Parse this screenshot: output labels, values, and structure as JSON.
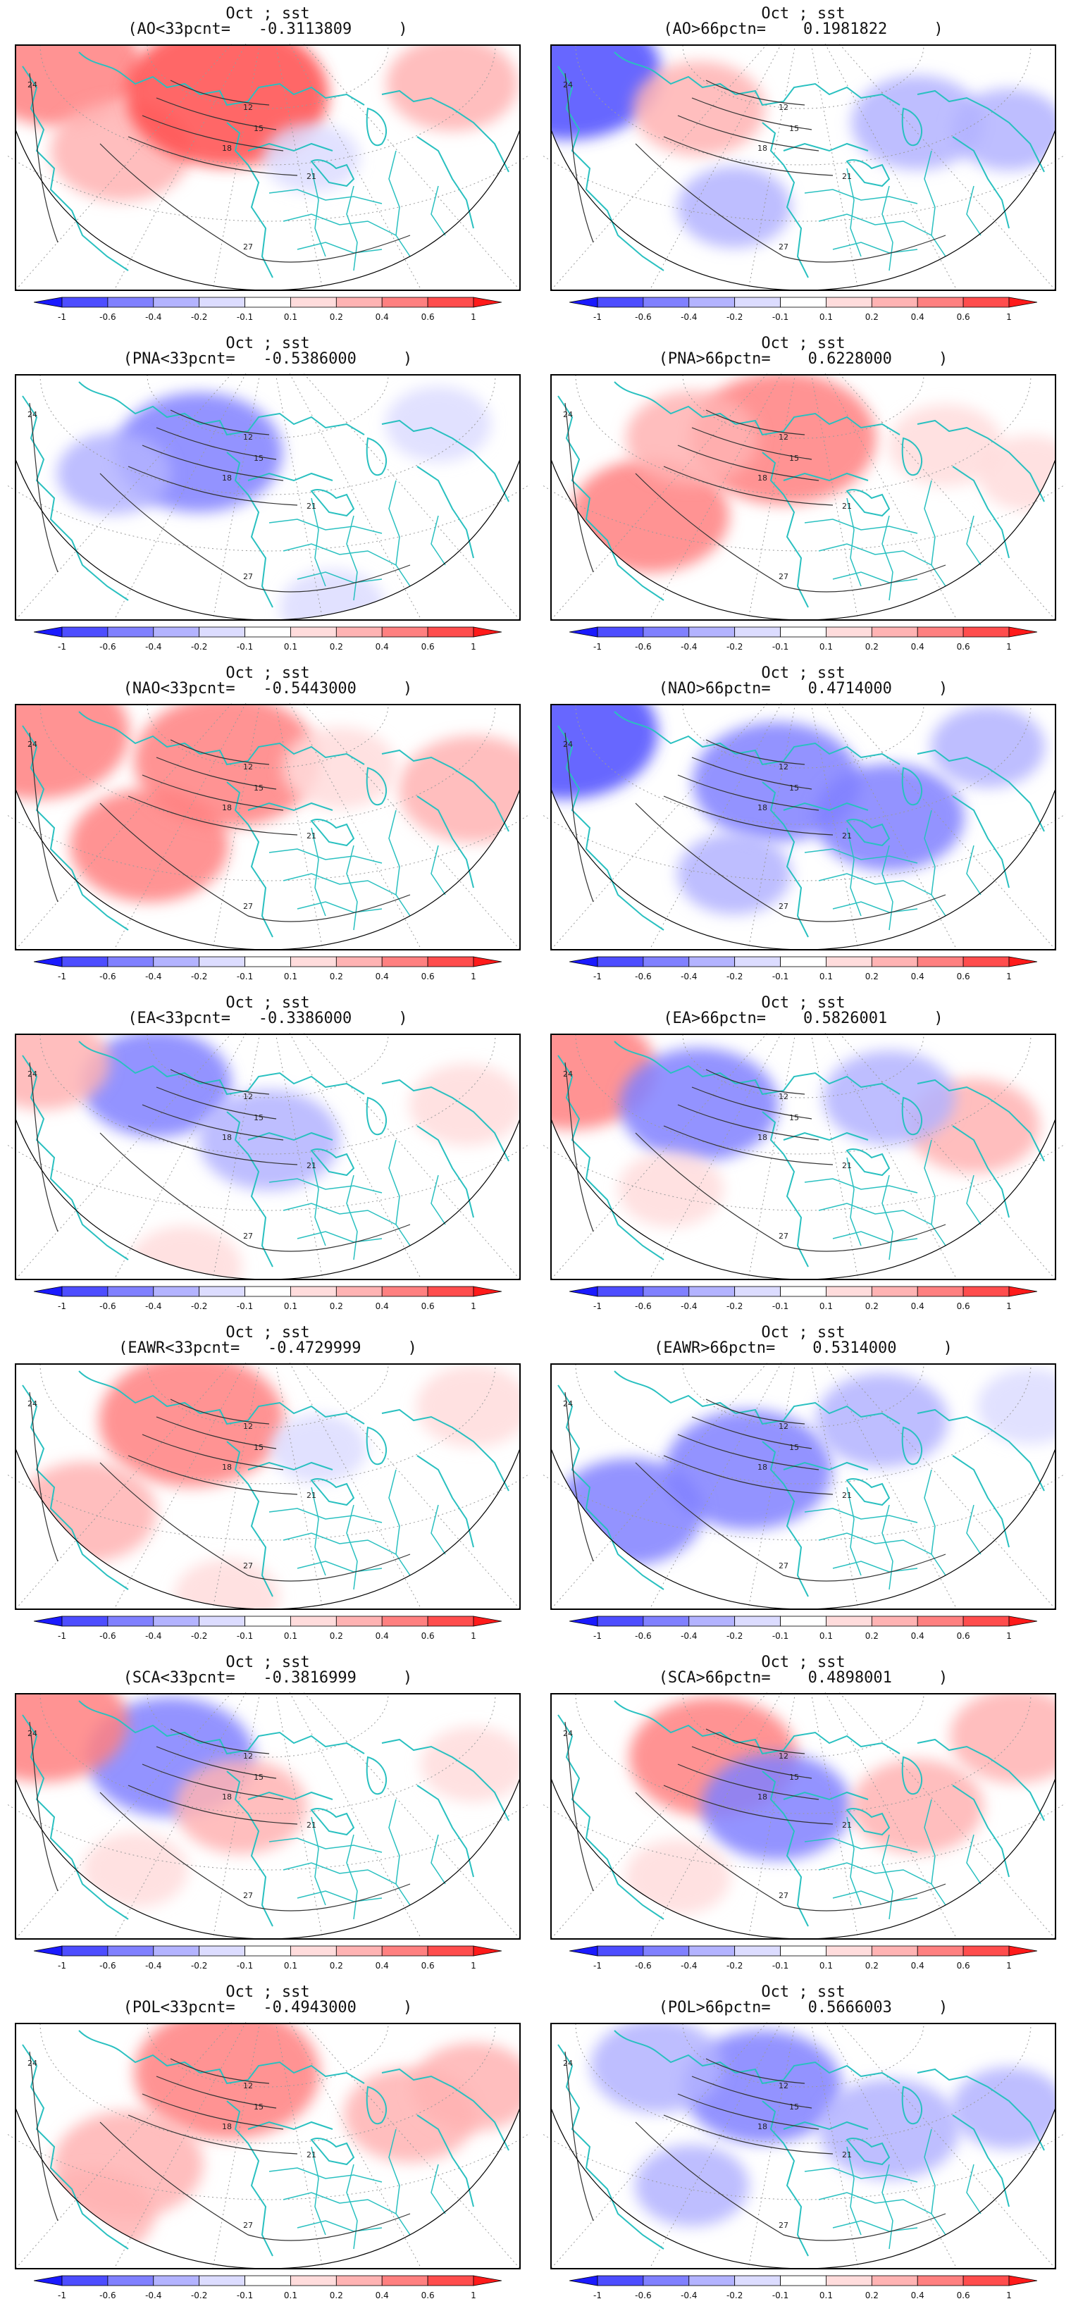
{
  "colorbar": {
    "ticks": [
      "-1",
      "-0.6",
      "-0.4",
      "-0.2",
      "-0.1",
      "0.1",
      "0.2",
      "0.4",
      "0.6",
      "1"
    ],
    "colors": [
      "#1a1aff",
      "#4d4dff",
      "#8080ff",
      "#b3b3ff",
      "#dcdcff",
      "#ffffff",
      "#ffdcdc",
      "#ffb3b3",
      "#ff8080",
      "#ff4d4d",
      "#ff1a1a"
    ]
  },
  "contour_labels": [
    "12",
    "15",
    "18",
    "21",
    "24",
    "27"
  ],
  "colors": {
    "coast": "#29c0c0",
    "contour": "#333333",
    "frame": "#000000",
    "grid": "#9a9a9a"
  },
  "panels": [
    {
      "title1": "Oct ; sst",
      "title2": "(AO<33pcnt=   -0.3113809     )",
      "pattern": [
        [
          60,
          30,
          0.5
        ],
        [
          150,
          150,
          0.35
        ],
        [
          300,
          70,
          0.7
        ],
        [
          620,
          55,
          0.3
        ],
        [
          420,
          160,
          -0.1
        ]
      ]
    },
    {
      "title1": "Oct ; sst",
      "title2": "(AO>66pctn=    0.1981822     )",
      "pattern": [
        [
          25,
          40,
          -0.6
        ],
        [
          210,
          90,
          0.3
        ],
        [
          520,
          110,
          -0.3
        ],
        [
          260,
          230,
          -0.2
        ],
        [
          650,
          120,
          -0.2
        ]
      ]
    },
    {
      "title1": "Oct ; sst",
      "title2": "(PNA<33pcnt=   -0.5386000     )",
      "pattern": [
        [
          260,
          110,
          -0.5
        ],
        [
          140,
          140,
          -0.2
        ],
        [
          600,
          70,
          -0.15
        ],
        [
          450,
          330,
          -0.15
        ]
      ]
    },
    {
      "title1": "Oct ; sst",
      "title2": "(PNA>66pctn=    0.6228000     )",
      "pattern": [
        [
          140,
          200,
          0.45
        ],
        [
          330,
          90,
          0.6
        ],
        [
          200,
          90,
          0.3
        ],
        [
          560,
          100,
          0.2
        ],
        [
          680,
          140,
          0.15
        ]
      ]
    },
    {
      "title1": "Oct ; sst",
      "title2": "(NAO<33pcnt=   -0.5443000     )",
      "pattern": [
        [
          30,
          40,
          0.6
        ],
        [
          190,
          200,
          0.45
        ],
        [
          300,
          80,
          0.6
        ],
        [
          650,
          120,
          0.4
        ],
        [
          460,
          90,
          0.2
        ]
      ]
    },
    {
      "title1": "Oct ; sst",
      "title2": "(NAO>66pctn=    0.4714000     )",
      "pattern": [
        [
          20,
          40,
          -0.6
        ],
        [
          320,
          110,
          -0.5
        ],
        [
          260,
          240,
          -0.2
        ],
        [
          480,
          160,
          -0.4
        ],
        [
          620,
          60,
          -0.2
        ]
      ]
    },
    {
      "title1": "Oct ; sst",
      "title2": "(EA<33pcnt=   -0.3386000     )",
      "pattern": [
        [
          200,
          70,
          -0.4
        ],
        [
          360,
          150,
          -0.35
        ],
        [
          40,
          40,
          0.3
        ],
        [
          240,
          330,
          0.2
        ],
        [
          640,
          100,
          0.2
        ]
      ]
    },
    {
      "title1": "Oct ; sst",
      "title2": "(EA>66pctn=    0.5826001     )",
      "pattern": [
        [
          30,
          50,
          0.5
        ],
        [
          210,
          100,
          -0.45
        ],
        [
          600,
          130,
          0.3
        ],
        [
          480,
          90,
          -0.3
        ],
        [
          170,
          220,
          0.15
        ]
      ]
    },
    {
      "title1": "Oct ; sst",
      "title2": "(EAWR<33pcnt=   -0.4729999     )",
      "pattern": [
        [
          250,
          80,
          0.6
        ],
        [
          100,
          210,
          0.35
        ],
        [
          650,
          60,
          0.2
        ],
        [
          430,
          120,
          -0.1
        ],
        [
          300,
          330,
          0.15
        ]
      ]
    },
    {
      "title1": "Oct ; sst",
      "title2": "(EAWR>66pctn=    0.5314000     )",
      "pattern": [
        [
          280,
          150,
          -0.5
        ],
        [
          110,
          210,
          -0.4
        ],
        [
          470,
          80,
          -0.3
        ],
        [
          680,
          60,
          -0.15
        ],
        [
          540,
          230,
          0.1
        ]
      ]
    },
    {
      "title1": "Oct ; sst",
      "title2": "(SCA<33pcnt=   -0.3816999     )",
      "pattern": [
        [
          220,
          90,
          -0.5
        ],
        [
          40,
          40,
          0.5
        ],
        [
          320,
          160,
          0.3
        ],
        [
          170,
          250,
          0.15
        ],
        [
          650,
          100,
          0.15
        ]
      ]
    },
    {
      "title1": "Oct ; sst",
      "title2": "(SCA>66pctn=    0.4898001     )",
      "pattern": [
        [
          230,
          90,
          0.5
        ],
        [
          320,
          160,
          -0.4
        ],
        [
          520,
          160,
          0.3
        ],
        [
          180,
          260,
          0.15
        ],
        [
          660,
          60,
          0.3
        ]
      ]
    },
    {
      "title1": "Oct ; sst",
      "title2": "(POL<33pcnt=   -0.4943000     )",
      "pattern": [
        [
          300,
          70,
          0.6
        ],
        [
          160,
          200,
          0.4
        ],
        [
          110,
          270,
          0.25
        ],
        [
          560,
          130,
          0.3
        ],
        [
          650,
          90,
          0.25
        ]
      ]
    },
    {
      "title1": "Oct ; sst",
      "title2": "(POL>66pctn=    0.5666003     )",
      "pattern": [
        [
          300,
          90,
          -0.45
        ],
        [
          150,
          60,
          -0.3
        ],
        [
          480,
          150,
          -0.35
        ],
        [
          200,
          230,
          -0.2
        ],
        [
          650,
          120,
          -0.2
        ]
      ]
    }
  ]
}
